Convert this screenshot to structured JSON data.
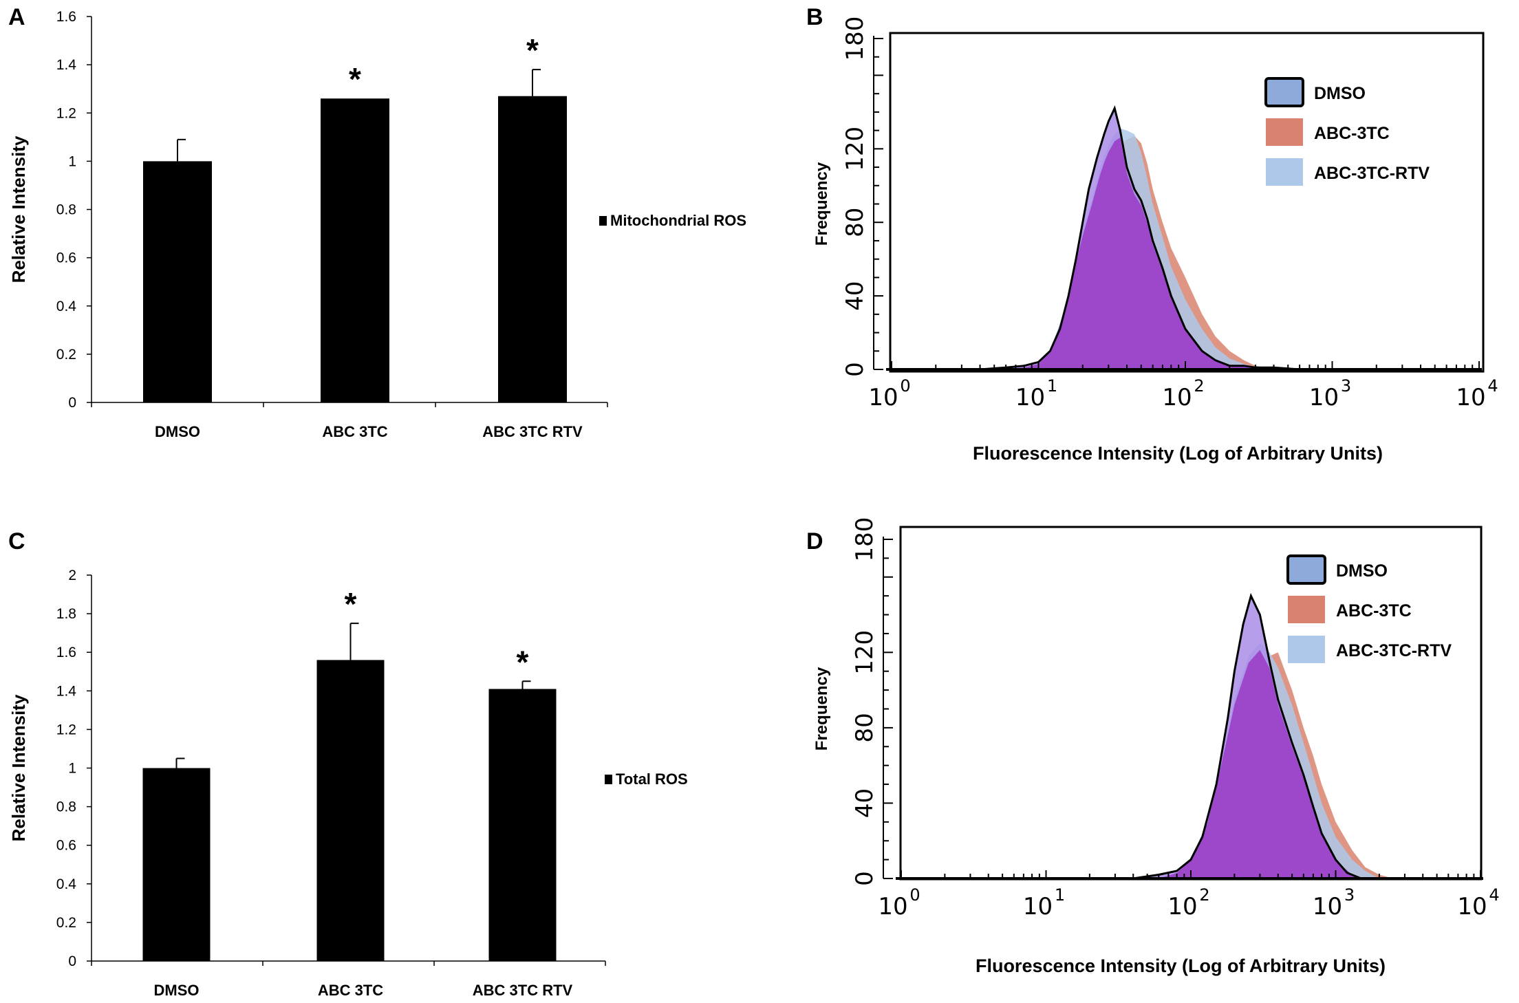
{
  "chart_data": [
    {
      "panel": "A",
      "type": "bar",
      "categories": [
        "DMSO",
        "ABC 3TC",
        "ABC  3TC RTV"
      ],
      "values": [
        1.0,
        1.26,
        1.27
      ],
      "errors": [
        0.09,
        0.0,
        0.11
      ],
      "significance": [
        "",
        "*",
        "*"
      ],
      "ylabel": "Relative Intensity",
      "ylim": [
        0,
        1.6
      ],
      "yticks": [
        "0",
        "0.2",
        "0.4",
        "0.6",
        "0.8",
        "1",
        "1.2",
        "1.4",
        "1.6"
      ],
      "legend": "Mitochondrial ROS",
      "color": "#000000"
    },
    {
      "panel": "B",
      "type": "area",
      "xscale": "log",
      "xlim": [
        1,
        10000
      ],
      "ylim": [
        0,
        180
      ],
      "xticks": [
        {
          "base": "10",
          "exp": "0"
        },
        {
          "base": "10",
          "exp": "1"
        },
        {
          "base": "10",
          "exp": "2"
        },
        {
          "base": "10",
          "exp": "3"
        },
        {
          "base": "10",
          "exp": "4"
        }
      ],
      "yticks": [
        "0",
        "40",
        "80",
        "120",
        "180"
      ],
      "xlabel": "Fluorescence Intensity (Log of Arbitrary Units)",
      "ylabel": "Frequency",
      "series": [
        {
          "name": "ABC-3TC",
          "color": "#d9826f",
          "x": [
            5,
            8,
            10,
            12,
            15,
            18,
            20,
            23,
            26,
            28,
            30,
            33,
            36,
            40,
            45,
            50,
            55,
            60,
            70,
            80,
            100,
            130,
            160,
            200,
            250,
            300,
            400
          ],
          "y": [
            0,
            1,
            3,
            8,
            25,
            50,
            65,
            80,
            95,
            105,
            112,
            118,
            122,
            125,
            127,
            123,
            112,
            98,
            80,
            66,
            50,
            30,
            18,
            10,
            5,
            2,
            0
          ]
        },
        {
          "name": "ABC-3TC-RTV",
          "color": "#aec8ea",
          "x": [
            5,
            8,
            10,
            12,
            15,
            18,
            20,
            23,
            26,
            28,
            30,
            33,
            36,
            40,
            45,
            50,
            55,
            60,
            70,
            80,
            100,
            130,
            160,
            200,
            250,
            300,
            400
          ],
          "y": [
            0,
            1,
            3,
            10,
            32,
            60,
            75,
            92,
            108,
            116,
            122,
            128,
            131,
            130,
            128,
            118,
            104,
            90,
            72,
            56,
            38,
            22,
            12,
            6,
            3,
            1,
            0
          ]
        },
        {
          "name": "DMSO",
          "color": "#8eaadb",
          "x": [
            4,
            6,
            8,
            10,
            12,
            14,
            16,
            18,
            20,
            22,
            25,
            28,
            30,
            33,
            36,
            40,
            45,
            50,
            55,
            60,
            70,
            80,
            100,
            130,
            160,
            200,
            250,
            300,
            400,
            600
          ],
          "y": [
            0,
            1,
            2,
            4,
            10,
            22,
            40,
            60,
            80,
            98,
            115,
            128,
            135,
            142,
            130,
            110,
            98,
            92,
            82,
            70,
            55,
            40,
            22,
            10,
            5,
            2,
            2,
            1,
            1,
            0
          ]
        }
      ]
    },
    {
      "panel": "C",
      "type": "bar",
      "categories": [
        "DMSO",
        "ABC 3TC",
        "ABC  3TC RTV"
      ],
      "values": [
        1.0,
        1.56,
        1.41
      ],
      "errors": [
        0.05,
        0.19,
        0.04
      ],
      "significance": [
        "",
        "*",
        "*"
      ],
      "ylabel": "Relative Intensity",
      "ylim": [
        0,
        2
      ],
      "yticks": [
        "0",
        "0.2",
        "0.4",
        "0.6",
        "0.8",
        "1",
        "1.2",
        "1.4",
        "1.6",
        "1.8",
        "2"
      ],
      "legend": "Total ROS",
      "color": "#000000"
    },
    {
      "panel": "D",
      "type": "area",
      "xscale": "log",
      "xlim": [
        1,
        10000
      ],
      "ylim": [
        0,
        180
      ],
      "xticks": [
        {
          "base": "10",
          "exp": "0"
        },
        {
          "base": "10",
          "exp": "1"
        },
        {
          "base": "10",
          "exp": "2"
        },
        {
          "base": "10",
          "exp": "3"
        },
        {
          "base": "10",
          "exp": "4"
        }
      ],
      "yticks": [
        "0",
        "40",
        "80",
        "120",
        "180"
      ],
      "xlabel": "Fluorescence Intensity (Log of Arbitrary Units)",
      "ylabel": "Frequency",
      "series": [
        {
          "name": "ABC-3TC",
          "color": "#d9826f",
          "x": [
            60,
            80,
            100,
            130,
            160,
            200,
            250,
            300,
            350,
            400,
            500,
            600,
            700,
            800,
            1000,
            1300,
            1600,
            2000,
            2500
          ],
          "y": [
            0,
            2,
            6,
            18,
            40,
            70,
            95,
            110,
            118,
            120,
            100,
            80,
            65,
            50,
            30,
            15,
            6,
            2,
            0
          ]
        },
        {
          "name": "ABC-3TC-RTV",
          "color": "#aec8ea",
          "x": [
            60,
            80,
            100,
            130,
            160,
            200,
            250,
            300,
            350,
            400,
            500,
            600,
            700,
            800,
            1000,
            1300,
            1600,
            2000
          ],
          "y": [
            0,
            3,
            10,
            30,
            60,
            95,
            118,
            125,
            120,
            112,
            92,
            72,
            55,
            40,
            22,
            10,
            4,
            0
          ]
        },
        {
          "name": "DMSO",
          "color": "#8eaadb",
          "x": [
            40,
            60,
            80,
            100,
            120,
            150,
            180,
            200,
            230,
            260,
            300,
            350,
            400,
            500,
            600,
            700,
            800,
            1000,
            1200,
            1500
          ],
          "y": [
            0,
            2,
            4,
            10,
            22,
            50,
            85,
            110,
            135,
            150,
            140,
            115,
            95,
            72,
            55,
            38,
            24,
            10,
            3,
            0
          ]
        }
      ]
    }
  ]
}
